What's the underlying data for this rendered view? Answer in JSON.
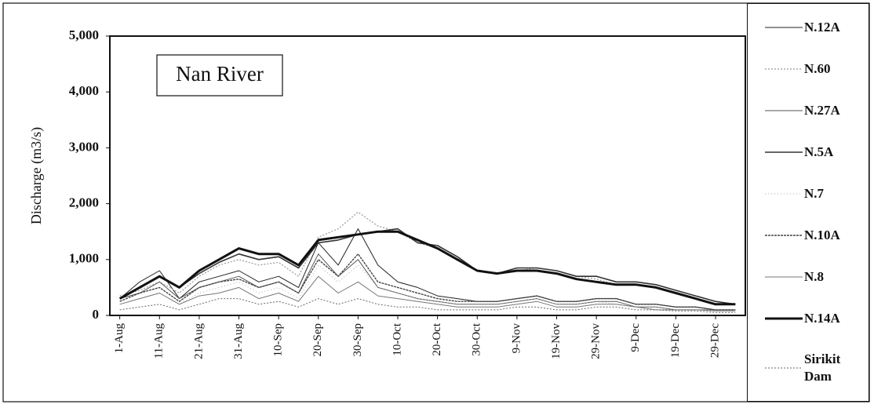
{
  "chart_data": {
    "type": "line",
    "annotation": "Nan River",
    "y_label": "Discharge (m3/s)",
    "categories": [
      "1-Aug",
      null,
      "11-Aug",
      null,
      "21-Aug",
      null,
      "31-Aug",
      null,
      "10-Sep",
      null,
      "20-Sep",
      null,
      "30-Sep",
      null,
      "10-Oct",
      null,
      "20-Oct",
      null,
      "30-Oct",
      null,
      "9-Nov",
      null,
      "19-Nov",
      null,
      "29-Nov",
      null,
      "9-Dec",
      null,
      "19-Dec",
      null,
      "29-Dec",
      null
    ],
    "ylim": [
      0,
      5000
    ],
    "yticks": [
      0,
      {
        "value": 1000,
        "label": "1,000"
      },
      {
        "value": 2000,
        "label": "2,000"
      },
      {
        "value": 3000,
        "label": "3,000"
      },
      {
        "value": 4000,
        "label": "4,000"
      },
      {
        "value": 5000,
        "label": "5,000"
      }
    ],
    "grid": false,
    "legend": "right",
    "series": [
      {
        "name": "N.12A",
        "color": "#222222",
        "width": 1,
        "dash": "none",
        "values": [
          300,
          600,
          800,
          300,
          600,
          700,
          800,
          600,
          700,
          500,
          1300,
          900,
          1550,
          900,
          600,
          500,
          350,
          300,
          250,
          250,
          300,
          350,
          250,
          250,
          300,
          300,
          200,
          200,
          150,
          150,
          100,
          100
        ]
      },
      {
        "name": "N.60",
        "color": "#999999",
        "width": 1.2,
        "dash": "2 2",
        "values": [
          350,
          450,
          600,
          400,
          700,
          900,
          1000,
          900,
          950,
          700,
          1400,
          1550,
          1850,
          1600,
          1500,
          1300,
          1200,
          1000,
          800,
          750,
          800,
          850,
          800,
          700,
          650,
          550,
          550,
          500,
          400,
          300,
          200,
          200
        ]
      },
      {
        "name": "N.27A",
        "color": "#555555",
        "width": 1,
        "dash": "none",
        "values": [
          300,
          400,
          600,
          300,
          500,
          600,
          700,
          500,
          600,
          400,
          1100,
          700,
          1000,
          500,
          400,
          300,
          250,
          200,
          200,
          200,
          250,
          300,
          200,
          200,
          250,
          250,
          150,
          150,
          100,
          100,
          100,
          100
        ]
      },
      {
        "name": "N.5A",
        "color": "#333333",
        "width": 1.6,
        "dash": "none",
        "values": [
          300,
          500,
          700,
          500,
          750,
          950,
          1100,
          1000,
          1050,
          850,
          1300,
          1350,
          1450,
          1500,
          1550,
          1300,
          1250,
          1050,
          800,
          750,
          850,
          850,
          800,
          700,
          700,
          600,
          600,
          550,
          450,
          350,
          250,
          200
        ]
      },
      {
        "name": "N.7",
        "color": "#aaaaaa",
        "width": 1,
        "dash": "1 3",
        "values": [
          200,
          300,
          400,
          200,
          400,
          500,
          600,
          400,
          500,
          300,
          900,
          600,
          900,
          500,
          400,
          300,
          250,
          200,
          200,
          200,
          250,
          300,
          200,
          200,
          250,
          200,
          150,
          150,
          100,
          100,
          100,
          100
        ]
      },
      {
        "name": "N.10A",
        "color": "#444444",
        "width": 1.4,
        "dash": "3 1",
        "values": [
          250,
          400,
          500,
          250,
          500,
          600,
          650,
          500,
          600,
          400,
          1000,
          700,
          1100,
          600,
          500,
          400,
          300,
          250,
          250,
          250,
          300,
          350,
          250,
          250,
          300,
          300,
          200,
          200,
          150,
          150,
          100,
          100
        ]
      },
      {
        "name": "N.8",
        "color": "#777777",
        "width": 1,
        "dash": "none",
        "values": [
          200,
          300,
          400,
          200,
          350,
          400,
          500,
          300,
          400,
          250,
          700,
          400,
          600,
          350,
          300,
          250,
          200,
          150,
          150,
          150,
          200,
          250,
          150,
          150,
          200,
          200,
          150,
          100,
          100,
          100,
          80,
          80
        ]
      },
      {
        "name": "N.14A",
        "color": "#111111",
        "width": 3,
        "dash": "none",
        "values": [
          300,
          500,
          700,
          500,
          800,
          1000,
          1200,
          1100,
          1100,
          900,
          1350,
          1400,
          1450,
          1500,
          1500,
          1350,
          1200,
          1000,
          800,
          750,
          800,
          800,
          750,
          650,
          600,
          550,
          550,
          500,
          400,
          300,
          200,
          200
        ]
      },
      {
        "name": "Sirikit Dam",
        "color": "#666666",
        "width": 1,
        "dash": "2 2",
        "values": [
          100,
          150,
          200,
          100,
          200,
          300,
          300,
          200,
          250,
          150,
          300,
          200,
          300,
          200,
          150,
          150,
          100,
          100,
          100,
          100,
          150,
          150,
          100,
          100,
          150,
          150,
          100,
          100,
          80,
          80,
          50,
          50
        ]
      }
    ]
  }
}
